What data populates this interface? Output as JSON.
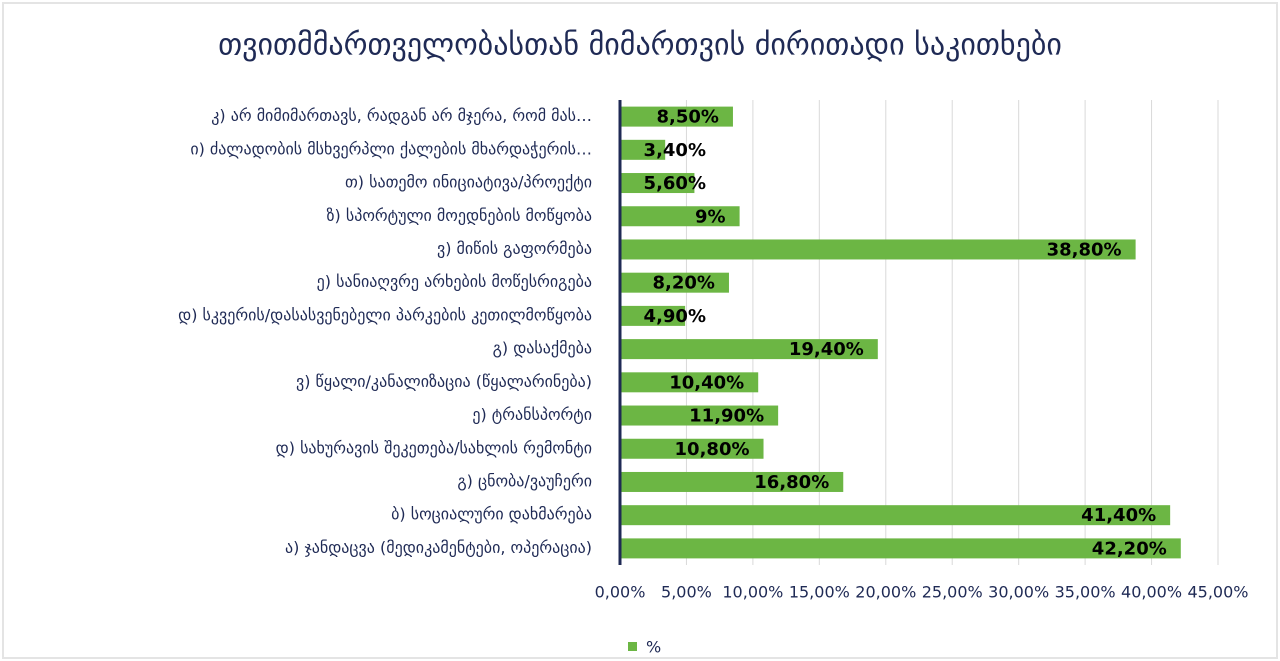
{
  "chart_data": {
    "type": "hbar",
    "title": "თვითმმართველობასთან მიმართვის ძირითადი საკითხები",
    "categories": [
      "კ) არ მიმიმართავს, რადგან არ მჯერა, რომ მას…",
      "ი) ძალადობის მსხვერპლი ქალების მხარდაჭერის…",
      "თ) სათემო ინიციატივა/პროექტი",
      "ზ) სპორტული მოედნების მოწყობა",
      "ვ) მიწის გაფორმება",
      "ე) სანიაღვრე არხების მოწესრიგება",
      "დ) სკვერის/დასასვენებელი პარკების კეთილმოწყობა",
      "გ) დასაქმება",
      "ვ) წყალი/კანალიზაცია (წყალარინება)",
      "ე) ტრანსპორტი",
      "დ) სახურავის შეკეთება/სახლის რემონტი",
      "გ) ცნობა/ვაუჩერი",
      "ბ) სოციალური დახმარება",
      "ა) ჯანდაცვა (მედიკამენტები, ოპერაცია)"
    ],
    "series": [
      {
        "name": "%",
        "color": "#6cb644",
        "values": [
          8.5,
          3.4,
          5.6,
          9,
          38.8,
          8.2,
          4.9,
          19.4,
          10.4,
          11.9,
          10.8,
          16.8,
          41.4,
          42.2
        ],
        "value_labels": [
          "8,50%",
          "3,40%",
          "5,60%",
          "9%",
          "38,80%",
          "8,20%",
          "4,90%",
          "19,40%",
          "10,40%",
          "11,90%",
          "10,80%",
          "16,80%",
          "41,40%",
          "42,20%"
        ]
      }
    ],
    "xlim": [
      0,
      45
    ],
    "xticks": [
      {
        "value": 0,
        "label": "0,00%"
      },
      {
        "value": 5,
        "label": "5,00%"
      },
      {
        "value": 10,
        "label": "10,00%"
      },
      {
        "value": 15,
        "label": "15,00%"
      },
      {
        "value": 20,
        "label": "20,00%"
      },
      {
        "value": 25,
        "label": "25,00%"
      },
      {
        "value": 30,
        "label": "30,00%"
      },
      {
        "value": 35,
        "label": "35,00%"
      },
      {
        "value": 40,
        "label": "40,00%"
      },
      {
        "value": 45,
        "label": "45,00%"
      }
    ],
    "grid": true,
    "legend": "bottom"
  }
}
